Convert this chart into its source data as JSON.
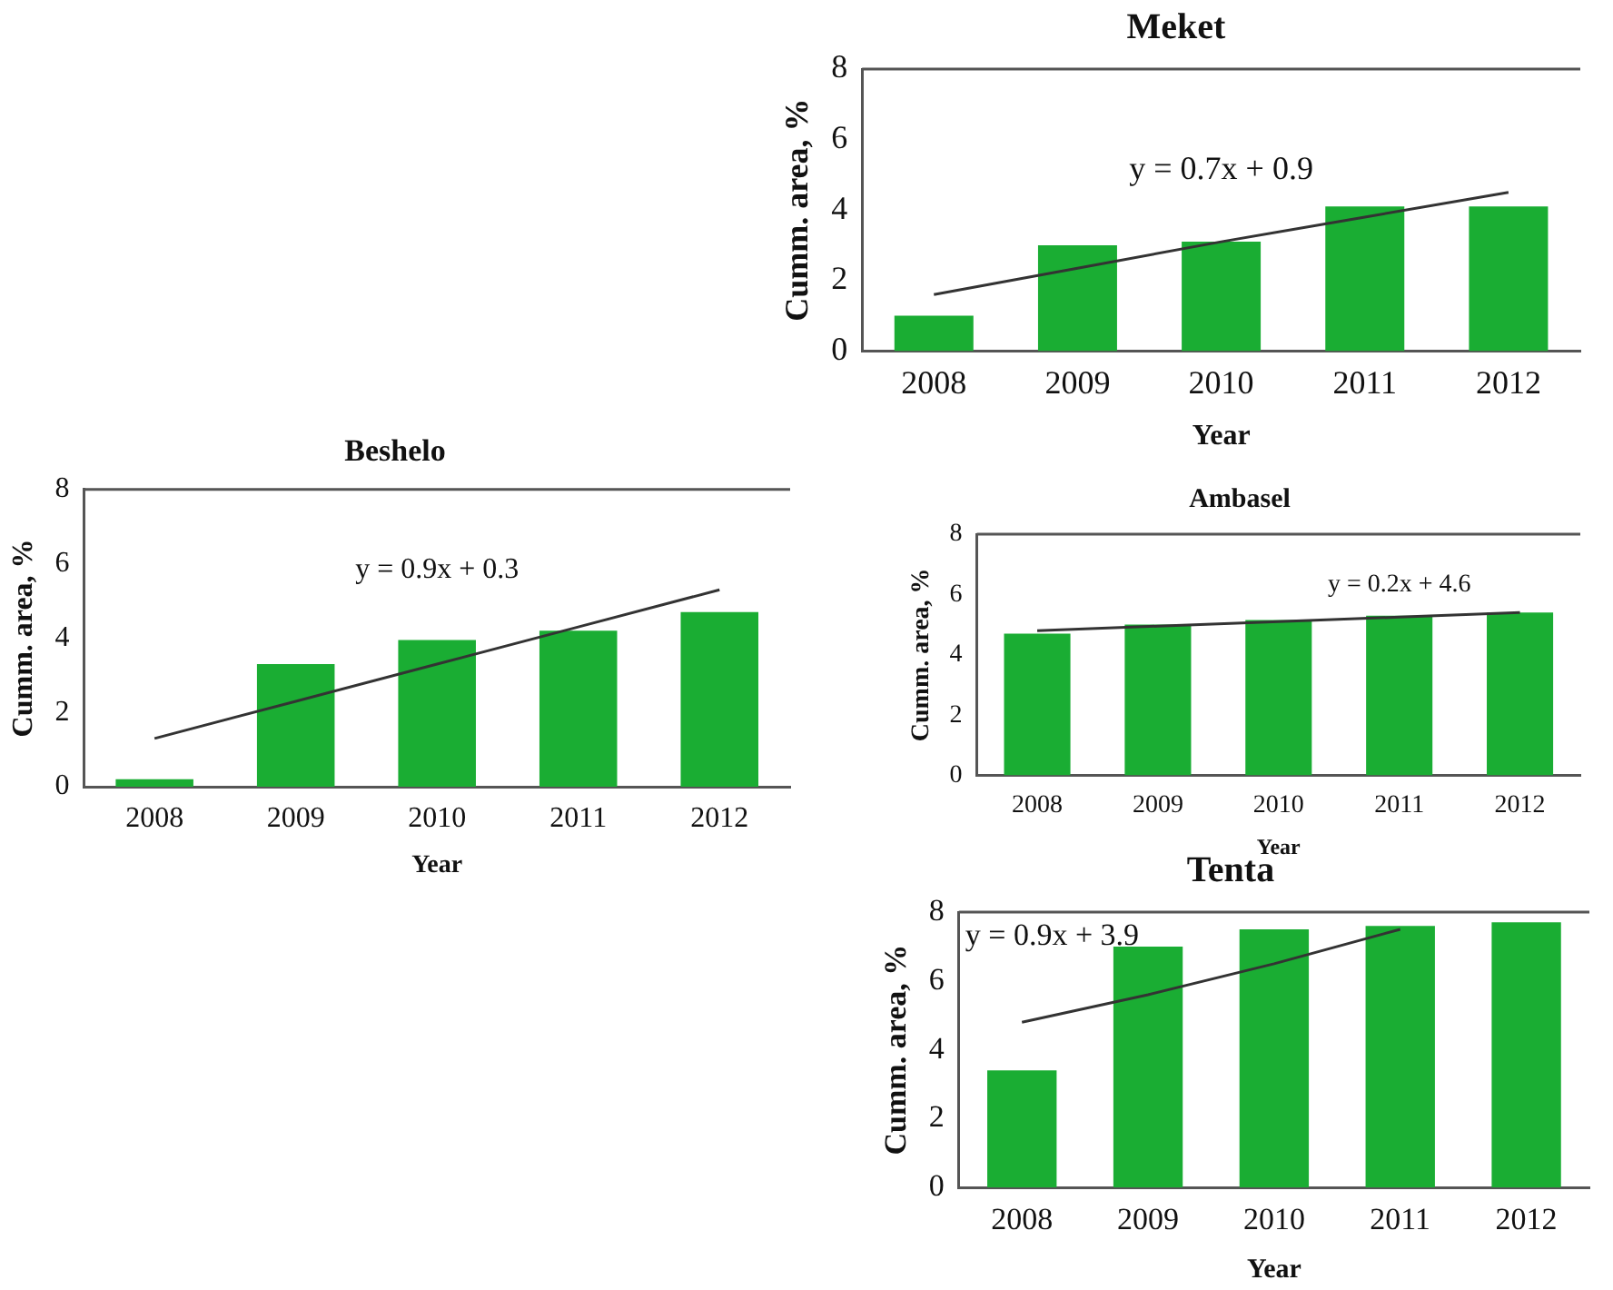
{
  "chart_data": [
    {
      "type": "bar",
      "title": "Meket",
      "xlabel": "Year",
      "ylabel": "Cumm. area, %",
      "categories": [
        "2008",
        "2009",
        "2010",
        "2011",
        "2012"
      ],
      "ylim": [
        0,
        8
      ],
      "yticks": [
        0,
        2,
        4,
        6,
        8
      ],
      "legend": false,
      "grid": false,
      "series": [
        {
          "color": "#1aad33",
          "values": [
            1.0,
            3.0,
            3.1,
            4.1,
            4.1
          ]
        },
        {
          "type": "line",
          "color": "#333333",
          "values": [
            1.6,
            2.35,
            3.1,
            3.8,
            4.5
          ]
        }
      ],
      "annotations": [
        "y = 0.7x + 0.9"
      ]
    },
    {
      "type": "bar",
      "title": "Beshelo",
      "xlabel": "Year",
      "ylabel": "Cumm. area, %",
      "categories": [
        "2008",
        "2009",
        "2010",
        "2011",
        "2012"
      ],
      "ylim": [
        0,
        8
      ],
      "yticks": [
        0,
        2,
        4,
        6,
        8
      ],
      "legend": false,
      "grid": false,
      "series": [
        {
          "color": "#1aad33",
          "values": [
            0.2,
            3.3,
            3.95,
            4.2,
            4.7
          ]
        },
        {
          "type": "line",
          "color": "#333333",
          "values": [
            1.3,
            2.3,
            3.3,
            4.3,
            5.3
          ]
        }
      ],
      "annotations": [
        "y = 0.9x + 0.3"
      ]
    },
    {
      "type": "bar",
      "title": "Ambasel",
      "xlabel": "Year",
      "ylabel": "Cumm. area, %",
      "categories": [
        "2008",
        "2009",
        "2010",
        "2011",
        "2012"
      ],
      "ylim": [
        0,
        8
      ],
      "yticks": [
        0,
        2,
        4,
        6,
        8
      ],
      "legend": false,
      "grid": false,
      "series": [
        {
          "color": "#1aad33",
          "values": [
            4.7,
            5.0,
            5.15,
            5.3,
            5.4
          ]
        },
        {
          "type": "line",
          "color": "#333333",
          "values": [
            4.8,
            4.95,
            5.1,
            5.25,
            5.4
          ]
        }
      ],
      "annotations": [
        "y = 0.2x + 4.6"
      ]
    },
    {
      "type": "bar",
      "title": "Tenta",
      "xlabel": "Year",
      "ylabel": "Cumm. area, %",
      "categories": [
        "2008",
        "2009",
        "2010",
        "2011",
        "2012"
      ],
      "ylim": [
        0,
        8
      ],
      "yticks": [
        0,
        2,
        4,
        6,
        8
      ],
      "legend": false,
      "grid": false,
      "series": [
        {
          "color": "#1aad33",
          "values": [
            3.4,
            7.0,
            7.5,
            7.6,
            7.7
          ]
        },
        {
          "type": "line",
          "color": "#333333",
          "values": [
            4.8,
            5.6,
            6.5,
            7.5,
            null
          ]
        }
      ],
      "annotations": [
        "y = 0.9x + 3.9"
      ]
    }
  ]
}
